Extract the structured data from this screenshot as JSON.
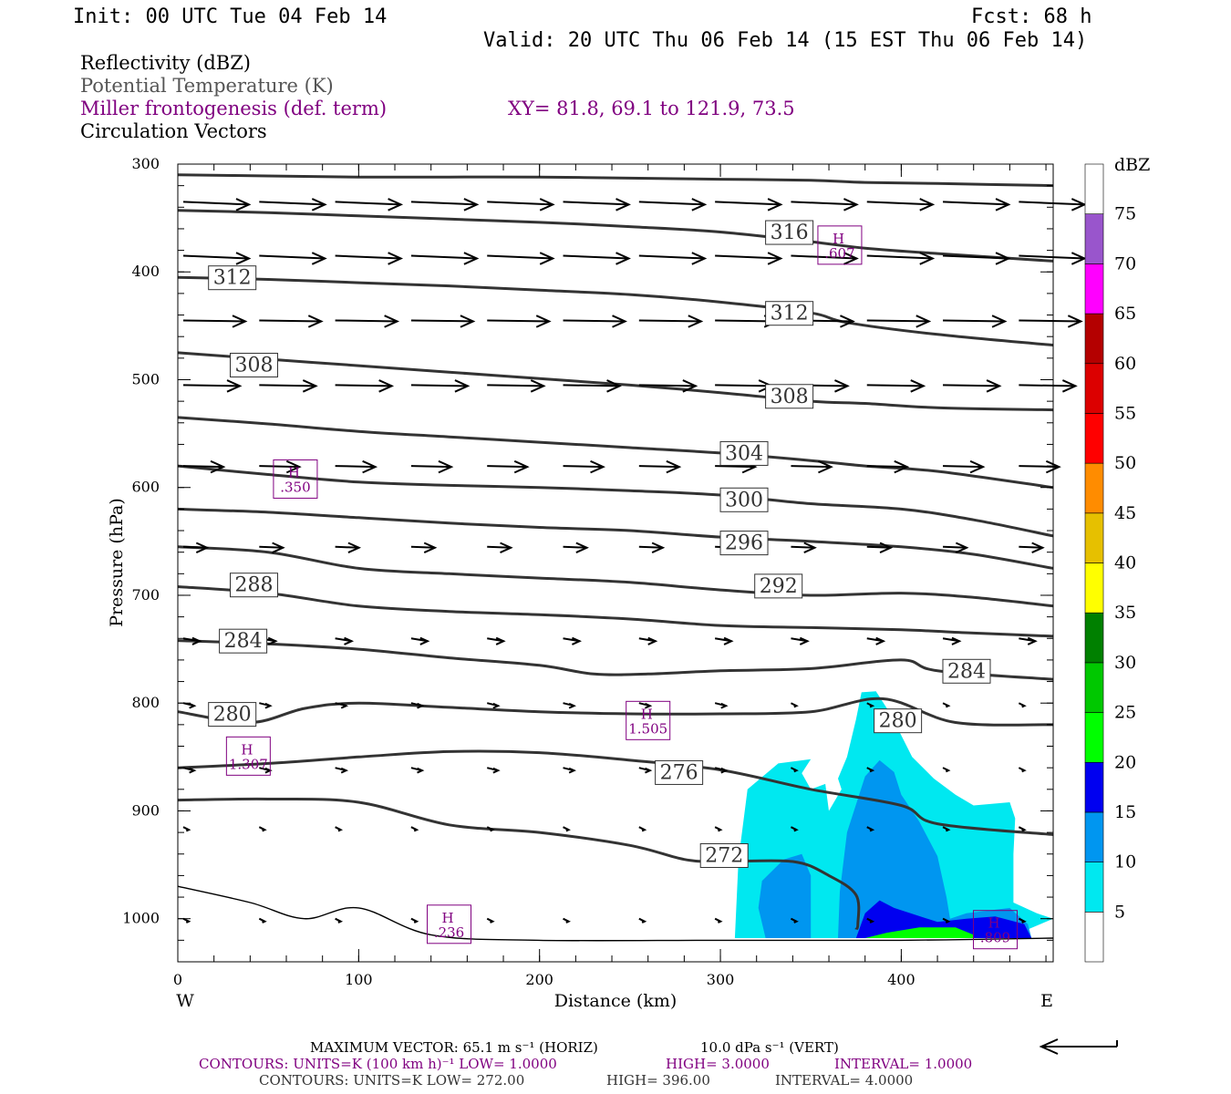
{
  "header": {
    "init": "Init: 00 UTC Tue 04 Feb 14",
    "fcst": "Fcst:   68 h",
    "valid": "Valid: 20 UTC Thu 06 Feb 14 (15 EST Thu 06 Feb 14)"
  },
  "titles": {
    "reflectivity": "Reflectivity (dBZ)",
    "theta": "Potential Temperature (K)",
    "miller": "Miller frontogenesis (def. term)",
    "xy": "XY=  81.8, 69.1 to 121.9, 73.5",
    "vectors": "Circulation Vectors"
  },
  "colors": {
    "purple": "#800080",
    "theta_line": "#333333"
  },
  "chart_data": {
    "type": "cross-section",
    "xlabel": "Distance (km)",
    "ylabel": "Pressure (hPa)",
    "xlim": [
      0,
      484
    ],
    "ylim": [
      300,
      1040
    ],
    "x_ticks": [
      "0",
      "100",
      "200",
      "300",
      "400"
    ],
    "y_ticks": [
      "300",
      "400",
      "500",
      "600",
      "700",
      "800",
      "900",
      "1000"
    ],
    "x_end_labels": {
      "left": "W",
      "right": "E"
    },
    "colorbar": {
      "title": "dBZ",
      "levels": [
        "5",
        "10",
        "15",
        "20",
        "25",
        "30",
        "35",
        "40",
        "45",
        "50",
        "55",
        "60",
        "65",
        "70",
        "75"
      ],
      "colors": [
        "#ffffff",
        "#00e8f0",
        "#0096f0",
        "#0000f0",
        "#00ff00",
        "#00c800",
        "#008000",
        "#ffff00",
        "#e6c000",
        "#ff8c00",
        "#ff0000",
        "#dc0000",
        "#b40000",
        "#ff00ff",
        "#9955cc",
        "#ffffff"
      ]
    },
    "theta_series": [
      {
        "label": "",
        "points": [
          [
            0,
            310
          ],
          [
            50,
            311
          ],
          [
            100,
            312
          ],
          [
            150,
            312
          ],
          [
            200,
            312
          ],
          [
            250,
            313
          ],
          [
            300,
            314
          ],
          [
            350,
            315
          ],
          [
            380,
            317
          ],
          [
            420,
            318
          ],
          [
            484,
            320
          ]
        ]
      },
      {
        "label": "316",
        "points": [
          [
            0,
            343
          ],
          [
            50,
            345
          ],
          [
            100,
            348
          ],
          [
            150,
            351
          ],
          [
            200,
            354
          ],
          [
            250,
            358
          ],
          [
            300,
            363
          ],
          [
            350,
            372
          ],
          [
            380,
            378
          ],
          [
            420,
            383
          ],
          [
            484,
            390
          ]
        ]
      },
      {
        "label": "312",
        "points": [
          [
            0,
            405
          ],
          [
            50,
            407
          ],
          [
            100,
            410
          ],
          [
            150,
            413
          ],
          [
            200,
            417
          ],
          [
            250,
            421
          ],
          [
            300,
            428
          ],
          [
            350,
            438
          ],
          [
            370,
            447
          ],
          [
            420,
            458
          ],
          [
            484,
            468
          ]
        ]
      },
      {
        "label": "308",
        "points": [
          [
            0,
            475
          ],
          [
            50,
            481
          ],
          [
            100,
            487
          ],
          [
            150,
            493
          ],
          [
            200,
            499
          ],
          [
            250,
            505
          ],
          [
            300,
            512
          ],
          [
            350,
            520
          ],
          [
            380,
            522
          ],
          [
            420,
            526
          ],
          [
            484,
            528
          ]
        ]
      },
      {
        "label": "304",
        "points": [
          [
            0,
            535
          ],
          [
            50,
            541
          ],
          [
            100,
            548
          ],
          [
            150,
            553
          ],
          [
            200,
            558
          ],
          [
            250,
            563
          ],
          [
            300,
            568
          ],
          [
            350,
            575
          ],
          [
            380,
            580
          ],
          [
            420,
            585
          ],
          [
            484,
            600
          ]
        ]
      },
      {
        "label": "300",
        "points": [
          [
            0,
            580
          ],
          [
            50,
            588
          ],
          [
            100,
            595
          ],
          [
            150,
            598
          ],
          [
            200,
            600
          ],
          [
            250,
            603
          ],
          [
            300,
            607
          ],
          [
            350,
            615
          ],
          [
            400,
            620
          ],
          [
            440,
            630
          ],
          [
            484,
            645
          ]
        ]
      },
      {
        "label": "296",
        "points": [
          [
            0,
            620
          ],
          [
            50,
            623
          ],
          [
            100,
            628
          ],
          [
            150,
            633
          ],
          [
            200,
            637
          ],
          [
            250,
            640
          ],
          [
            300,
            646
          ],
          [
            350,
            650
          ],
          [
            400,
            655
          ],
          [
            440,
            662
          ],
          [
            484,
            675
          ]
        ]
      },
      {
        "label": "292",
        "points": [
          [
            0,
            655
          ],
          [
            50,
            660
          ],
          [
            100,
            675
          ],
          [
            150,
            680
          ],
          [
            200,
            684
          ],
          [
            250,
            688
          ],
          [
            300,
            695
          ],
          [
            350,
            700
          ],
          [
            400,
            698
          ],
          [
            440,
            702
          ],
          [
            484,
            710
          ]
        ]
      },
      {
        "label": "288",
        "points": [
          [
            0,
            692
          ],
          [
            50,
            698
          ],
          [
            100,
            710
          ],
          [
            150,
            715
          ],
          [
            200,
            718
          ],
          [
            250,
            722
          ],
          [
            300,
            728
          ],
          [
            350,
            730
          ],
          [
            400,
            732
          ],
          [
            440,
            735
          ],
          [
            484,
            738
          ]
        ]
      },
      {
        "label": "284",
        "points": [
          [
            0,
            742
          ],
          [
            50,
            745
          ],
          [
            100,
            750
          ],
          [
            150,
            758
          ],
          [
            200,
            765
          ],
          [
            230,
            773
          ],
          [
            260,
            773
          ],
          [
            300,
            770
          ],
          [
            350,
            768
          ],
          [
            400,
            760
          ],
          [
            420,
            770
          ],
          [
            484,
            778
          ]
        ]
      },
      {
        "label": "280",
        "points": [
          [
            0,
            808
          ],
          [
            40,
            818
          ],
          [
            70,
            805
          ],
          [
            100,
            800
          ],
          [
            150,
            804
          ],
          [
            200,
            808
          ],
          [
            250,
            810
          ],
          [
            300,
            810
          ],
          [
            350,
            808
          ],
          [
            390,
            796
          ],
          [
            430,
            818
          ],
          [
            484,
            820
          ]
        ]
      },
      {
        "label": "276",
        "points": [
          [
            0,
            860
          ],
          [
            50,
            856
          ],
          [
            100,
            850
          ],
          [
            150,
            845
          ],
          [
            200,
            846
          ],
          [
            250,
            853
          ],
          [
            300,
            862
          ],
          [
            350,
            880
          ],
          [
            400,
            895
          ],
          [
            420,
            912
          ],
          [
            484,
            922
          ]
        ]
      },
      {
        "label": "272",
        "points": [
          [
            0,
            890
          ],
          [
            50,
            889
          ],
          [
            100,
            892
          ],
          [
            150,
            913
          ],
          [
            200,
            920
          ],
          [
            250,
            932
          ],
          [
            280,
            945
          ],
          [
            300,
            947
          ],
          [
            340,
            947
          ],
          [
            360,
            960
          ],
          [
            375,
            978
          ],
          [
            376,
            1005
          ],
          [
            375,
            1010
          ]
        ]
      },
      {
        "label": "",
        "points": [
          [
            0,
            970
          ],
          [
            40,
            985
          ],
          [
            70,
            1000
          ],
          [
            100,
            990
          ],
          [
            140,
            1015
          ],
          [
            200,
            1020
          ],
          [
            300,
            1020
          ],
          [
            400,
            1020
          ],
          [
            484,
            1018
          ]
        ]
      }
    ],
    "theta_labels": [
      {
        "text": "316",
        "x": 326,
        "p": 366
      },
      {
        "text": "312",
        "x": 18,
        "p": 408
      },
      {
        "text": "312",
        "x": 326,
        "p": 441
      },
      {
        "text": "308",
        "x": 30,
        "p": 489
      },
      {
        "text": "308",
        "x": 326,
        "p": 518
      },
      {
        "text": "304",
        "x": 301,
        "p": 571
      },
      {
        "text": "300",
        "x": 301,
        "p": 614
      },
      {
        "text": "296",
        "x": 301,
        "p": 654
      },
      {
        "text": "292",
        "x": 320,
        "p": 694
      },
      {
        "text": "288",
        "x": 30,
        "p": 693
      },
      {
        "text": "284",
        "x": 24,
        "p": 745
      },
      {
        "text": "284",
        "x": 424,
        "p": 773
      },
      {
        "text": "280",
        "x": 18,
        "p": 813
      },
      {
        "text": "280",
        "x": 386,
        "p": 819
      },
      {
        "text": "276",
        "x": 265,
        "p": 867
      },
      {
        "text": "272",
        "x": 290,
        "p": 944
      }
    ],
    "frontogenesis_maxima": [
      {
        "label": "H",
        "value": ".607",
        "x": 366,
        "p": 376
      },
      {
        "label": "H",
        "value": ".350",
        "x": 65,
        "p": 593
      },
      {
        "label": "H",
        "value": "1.505",
        "x": 260,
        "p": 817
      },
      {
        "label": "H",
        "value": "1.307",
        "x": 39,
        "p": 850
      },
      {
        "label": "H",
        "value": ".236",
        "x": 150,
        "p": 1006
      },
      {
        "label": "H",
        "value": ".809",
        "x": 452,
        "p": 1011
      }
    ],
    "reflectivity_regions": [
      {
        "dbz": 5,
        "points": [
          [
            308,
            1018
          ],
          [
            310,
            945
          ],
          [
            315,
            880
          ],
          [
            332,
            856
          ],
          [
            350,
            852
          ],
          [
            345,
            865
          ],
          [
            350,
            880
          ],
          [
            358,
            875
          ],
          [
            360,
            900
          ],
          [
            367,
            880
          ],
          [
            365,
            870
          ],
          [
            370,
            850
          ],
          [
            375,
            815
          ],
          [
            378,
            790
          ],
          [
            386,
            789
          ],
          [
            394,
            810
          ],
          [
            406,
            850
          ],
          [
            418,
            870
          ],
          [
            430,
            885
          ],
          [
            440,
            895
          ],
          [
            460,
            892
          ],
          [
            463,
            907
          ],
          [
            462,
            940
          ],
          [
            462,
            985
          ],
          [
            475,
            995
          ],
          [
            484,
            1000
          ],
          [
            470,
            1010
          ],
          [
            464,
            1018
          ]
        ]
      },
      {
        "dbz": 10,
        "points": [
          [
            325,
            1018
          ],
          [
            321,
            990
          ],
          [
            323,
            965
          ],
          [
            335,
            945
          ],
          [
            345,
            940
          ],
          [
            350,
            960
          ],
          [
            350,
            1018
          ]
        ]
      },
      {
        "dbz": 10,
        "points": [
          [
            365,
            1018
          ],
          [
            366,
            975
          ],
          [
            370,
            920
          ],
          [
            380,
            868
          ],
          [
            388,
            853
          ],
          [
            396,
            864
          ],
          [
            400,
            885
          ],
          [
            410,
            910
          ],
          [
            420,
            942
          ],
          [
            425,
            980
          ],
          [
            427,
            1000
          ],
          [
            436,
            995
          ],
          [
            460,
            990
          ],
          [
            470,
            1005
          ],
          [
            472,
            1018
          ]
        ]
      },
      {
        "dbz": 15,
        "points": [
          [
            375,
            1018
          ],
          [
            380,
            995
          ],
          [
            388,
            983
          ],
          [
            396,
            990
          ],
          [
            420,
            1003
          ],
          [
            436,
            1000
          ],
          [
            452,
            998
          ],
          [
            468,
            1005
          ],
          [
            472,
            1018
          ]
        ]
      },
      {
        "dbz": 20,
        "points": [
          [
            380,
            1018
          ],
          [
            392,
            1013
          ],
          [
            410,
            1008
          ],
          [
            430,
            1008
          ],
          [
            440,
            1015
          ],
          [
            440,
            1018
          ]
        ]
      }
    ],
    "vectors": [
      {
        "x": 0,
        "p": 335,
        "u": 40,
        "w": 0
      }
    ]
  },
  "footer": {
    "max_vector": "MAXIMUM VECTOR:  65.1 m s⁻¹ (HORIZ)",
    "max_vert": "10.0 dPa s⁻¹ (VERT)",
    "contours1": "CONTOURS:  UNITS=K (100 km h)⁻¹  LOW=   1.0000",
    "contours1_high": "HIGH=   3.0000",
    "contours1_interval": "INTERVAL=    1.0000",
    "contours2": "CONTOURS:  UNITS=K  LOW=   272.00",
    "contours2_high": "HIGH=   396.00",
    "contours2_interval": "INTERVAL=    4.0000"
  }
}
